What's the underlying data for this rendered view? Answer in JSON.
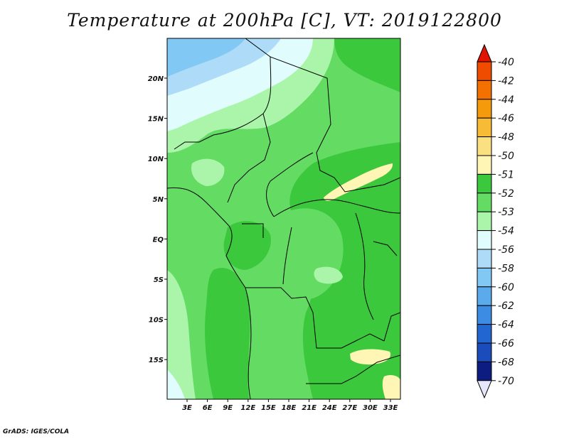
{
  "title": "Temperature at 200hPa [C], VT: 2019122800",
  "credit": "GrADS: IGES/COLA",
  "map": {
    "lon_labels": [
      "3E",
      "6E",
      "9E",
      "12E",
      "15E",
      "18E",
      "21E",
      "24E",
      "27E",
      "30E",
      "33E"
    ],
    "lat_labels": [
      "20N",
      "15N",
      "10N",
      "5N",
      "EQ",
      "5S",
      "10S",
      "15S"
    ]
  },
  "colorbar": {
    "labels": [
      "-40",
      "-42",
      "-44",
      "-46",
      "-48",
      "-50",
      "-51",
      "-52",
      "-53",
      "-54",
      "-56",
      "-58",
      "-60",
      "-62",
      "-64",
      "-66",
      "-68",
      "-70"
    ],
    "colors": [
      "#e81e00",
      "#f04c00",
      "#f47000",
      "#f59a0a",
      "#f8bb35",
      "#fbe081",
      "#fff5b4",
      "#3cc83c",
      "#64dc64",
      "#aaf5aa",
      "#e0fcfc",
      "#aedcf8",
      "#82c8f4",
      "#5aaaec",
      "#3c8ce4",
      "#2266d2",
      "#1a4cbc",
      "#0c1c80"
    ],
    "top_tip_color": "#e01400",
    "bottom_tip_color": "#e6e6fa"
  }
}
